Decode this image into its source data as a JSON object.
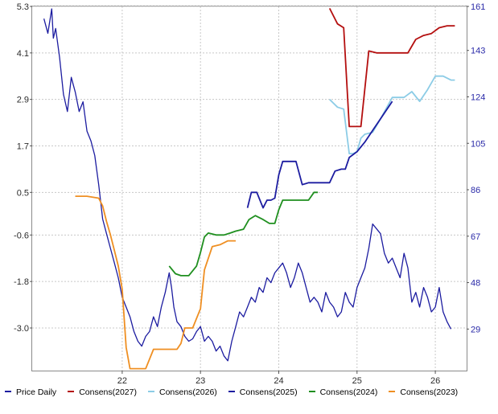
{
  "chart_data": {
    "type": "line",
    "x_ticks": [
      "22",
      "23",
      "24",
      "25",
      "26"
    ],
    "x_tick_values": [
      2022,
      2023,
      2024,
      2025,
      2026
    ],
    "xlim": [
      2020.85,
      2026.4
    ],
    "left_axis": {
      "ticks": [
        "5.3",
        "4.1",
        "2.9",
        "1.7",
        "0.5",
        "-0.6",
        "-1.8",
        "-3.0"
      ],
      "tick_values": [
        5.3,
        4.1,
        2.9,
        1.7,
        0.5,
        -0.6,
        -1.8,
        -3.0
      ],
      "ylim": [
        -4.1,
        5.3
      ]
    },
    "right_axis": {
      "ticks": [
        "161",
        "143",
        "124",
        "105",
        "86",
        "67",
        "48",
        "29"
      ],
      "tick_values": [
        161,
        143,
        124,
        105,
        86,
        67,
        48,
        29
      ],
      "ylim": [
        12,
        161
      ]
    },
    "grid": true,
    "legend_position": "bottom",
    "series": [
      {
        "name": "Price Daily",
        "axis": "right",
        "color": "#1c1ca0",
        "x": [
          2021.0,
          2021.05,
          2021.1,
          2021.12,
          2021.15,
          2021.2,
          2021.25,
          2021.3,
          2021.35,
          2021.4,
          2021.45,
          2021.5,
          2021.55,
          2021.6,
          2021.65,
          2021.7,
          2021.75,
          2021.8,
          2021.85,
          2021.9,
          2021.95,
          2022.0,
          2022.05,
          2022.1,
          2022.15,
          2022.2,
          2022.25,
          2022.3,
          2022.35,
          2022.4,
          2022.45,
          2022.5,
          2022.55,
          2022.6,
          2022.63,
          2022.66,
          2022.7,
          2022.75,
          2022.8,
          2022.85,
          2022.9,
          2022.95,
          2023.0,
          2023.05,
          2023.1,
          2023.15,
          2023.2,
          2023.25,
          2023.3,
          2023.35,
          2023.4,
          2023.45,
          2023.5,
          2023.55,
          2023.6,
          2023.65,
          2023.7,
          2023.75,
          2023.8,
          2023.85,
          2023.9,
          2023.95,
          2024.0,
          2024.05,
          2024.1,
          2024.15,
          2024.2,
          2024.25,
          2024.3,
          2024.35,
          2024.4,
          2024.45,
          2024.5,
          2024.55,
          2024.6,
          2024.65,
          2024.7,
          2024.75,
          2024.8,
          2024.85,
          2024.9,
          2024.95,
          2025.0,
          2025.05,
          2025.1,
          2025.15,
          2025.2,
          2025.25,
          2025.3,
          2025.35,
          2025.4,
          2025.45,
          2025.5,
          2025.55,
          2025.6,
          2025.65,
          2025.7,
          2025.75,
          2025.8,
          2025.85,
          2025.9,
          2025.95,
          2026.0,
          2026.05,
          2026.1,
          2026.15,
          2026.2
        ],
        "y": [
          156,
          150,
          160,
          148,
          152,
          140,
          125,
          118,
          132,
          126,
          118,
          122,
          110,
          106,
          100,
          88,
          74,
          68,
          62,
          56,
          50,
          42,
          38,
          34,
          28,
          24,
          22,
          26,
          28,
          34,
          30,
          38,
          44,
          52,
          46,
          38,
          32,
          30,
          26,
          24,
          25,
          28,
          30,
          24,
          26,
          24,
          20,
          22,
          18,
          16,
          24,
          30,
          36,
          34,
          38,
          42,
          40,
          46,
          44,
          50,
          48,
          52,
          54,
          56,
          52,
          46,
          50,
          56,
          52,
          46,
          40,
          42,
          40,
          36,
          44,
          40,
          38,
          34,
          36,
          44,
          40,
          38,
          46,
          50,
          54,
          62,
          72,
          70,
          68,
          60,
          56,
          58,
          54,
          50,
          60,
          54,
          40,
          44,
          38,
          46,
          42,
          36,
          38,
          46,
          36,
          32,
          29
        ]
      },
      {
        "name": "Consens(2027)",
        "axis": "left",
        "color": "#b40f0f",
        "x": [
          2024.65,
          2024.75,
          2024.83,
          2024.9,
          2025.05,
          2025.15,
          2025.25,
          2025.35,
          2025.45,
          2025.55,
          2025.65,
          2025.75,
          2025.85,
          2025.95,
          2026.05,
          2026.15,
          2026.25
        ],
        "y": [
          5.25,
          4.85,
          4.75,
          2.2,
          2.2,
          4.15,
          4.1,
          4.1,
          4.1,
          4.1,
          4.1,
          4.45,
          4.55,
          4.6,
          4.75,
          4.8,
          4.8
        ]
      },
      {
        "name": "Consens(2026)",
        "axis": "left",
        "color": "#8ccce6",
        "x": [
          2024.65,
          2024.75,
          2024.83,
          2024.9,
          2024.95,
          2025.0,
          2025.05,
          2025.1,
          2025.2,
          2025.3,
          2025.45,
          2025.6,
          2025.7,
          2025.8,
          2025.9,
          2026.0,
          2026.1,
          2026.2,
          2026.25
        ],
        "y": [
          2.9,
          2.7,
          2.65,
          1.5,
          1.5,
          1.55,
          1.9,
          2.0,
          2.05,
          2.4,
          2.95,
          2.95,
          3.1,
          2.85,
          3.15,
          3.5,
          3.5,
          3.4,
          3.4
        ]
      },
      {
        "name": "Consens(2025)",
        "axis": "left",
        "color": "#1c1ca0",
        "x": [
          2023.6,
          2023.65,
          2023.72,
          2023.8,
          2023.85,
          2023.9,
          2023.95,
          2024.0,
          2024.05,
          2024.12,
          2024.22,
          2024.3,
          2024.38,
          2024.45,
          2024.55,
          2024.65,
          2024.72,
          2024.8,
          2024.85,
          2024.9,
          2025.0,
          2025.1,
          2025.2,
          2025.3,
          2025.45
        ],
        "y": [
          0.1,
          0.5,
          0.5,
          0.1,
          0.3,
          0.3,
          0.35,
          0.95,
          1.3,
          1.3,
          1.3,
          0.7,
          0.75,
          0.75,
          0.75,
          0.75,
          1.05,
          1.1,
          1.1,
          1.4,
          1.55,
          1.8,
          2.1,
          2.4,
          2.85
        ]
      },
      {
        "name": "Consens(2024)",
        "axis": "left",
        "color": "#1f8f1f",
        "x": [
          2022.6,
          2022.68,
          2022.75,
          2022.85,
          2022.95,
          2023.0,
          2023.05,
          2023.1,
          2023.2,
          2023.3,
          2023.38,
          2023.45,
          2023.55,
          2023.62,
          2023.7,
          2023.8,
          2023.88,
          2023.95,
          2024.0,
          2024.05,
          2024.12,
          2024.2,
          2024.3,
          2024.38,
          2024.45,
          2024.5
        ],
        "y": [
          -1.4,
          -1.6,
          -1.65,
          -1.65,
          -1.4,
          -1.05,
          -0.65,
          -0.55,
          -0.6,
          -0.6,
          -0.55,
          -0.5,
          -0.45,
          -0.2,
          -0.1,
          -0.2,
          -0.3,
          -0.3,
          0.05,
          0.3,
          0.3,
          0.3,
          0.3,
          0.3,
          0.5,
          0.5
        ]
      },
      {
        "name": "Consens(2023)",
        "axis": "left",
        "color": "#ef8f22",
        "x": [
          2021.4,
          2021.55,
          2021.7,
          2021.75,
          2021.8,
          2021.85,
          2021.9,
          2021.95,
          2022.0,
          2022.05,
          2022.1,
          2022.2,
          2022.3,
          2022.4,
          2022.5,
          2022.6,
          2022.7,
          2022.75,
          2022.8,
          2022.9,
          2023.0,
          2023.05,
          2023.15,
          2023.25,
          2023.35,
          2023.45
        ],
        "y": [
          0.4,
          0.4,
          0.35,
          0.15,
          -0.25,
          -0.6,
          -1.0,
          -1.4,
          -2.0,
          -3.5,
          -4.05,
          -4.05,
          -4.05,
          -3.55,
          -3.55,
          -3.55,
          -3.55,
          -3.4,
          -3.0,
          -3.0,
          -2.5,
          -1.5,
          -0.9,
          -0.85,
          -0.75,
          -0.75
        ]
      }
    ]
  }
}
